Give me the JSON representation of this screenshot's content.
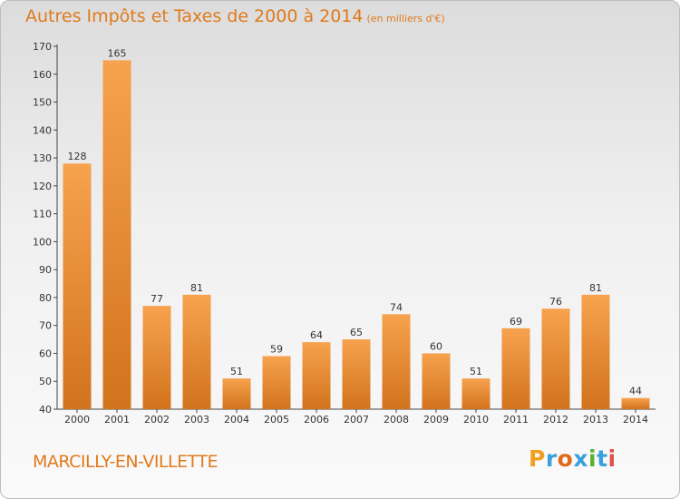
{
  "header": {
    "title": "Autres Impôts et Taxes de 2000 à 2014",
    "subtitle": "(en milliers d'€)"
  },
  "footer": {
    "city": "MARCILLY-EN-VILLETTE",
    "logo": "Proxiti"
  },
  "colors": {
    "accent": "#e07a1c",
    "bar_top": "#f7a24e",
    "bar_bottom": "#d2731d",
    "logo_letters": [
      "#f0a020",
      "#3aa0dc",
      "#e06a1a",
      "#3aa0dc",
      "#5bb030",
      "#3aa0dc",
      "#e05050"
    ]
  },
  "chart_data": {
    "type": "bar",
    "title": "Autres Impôts et Taxes de 2000 à 2014",
    "subtitle": "(en milliers d'€)",
    "categories": [
      "2000",
      "2001",
      "2002",
      "2003",
      "2004",
      "2005",
      "2006",
      "2007",
      "2008",
      "2009",
      "2010",
      "2011",
      "2012",
      "2013",
      "2014"
    ],
    "values": [
      128,
      165,
      77,
      81,
      51,
      59,
      64,
      65,
      74,
      60,
      51,
      69,
      76,
      81,
      44
    ],
    "ylim": [
      40,
      170
    ],
    "yticks": [
      40,
      50,
      60,
      70,
      80,
      90,
      100,
      110,
      120,
      130,
      140,
      150,
      160,
      170
    ],
    "grid": false,
    "legend": "none",
    "xlabel": "",
    "ylabel": ""
  }
}
